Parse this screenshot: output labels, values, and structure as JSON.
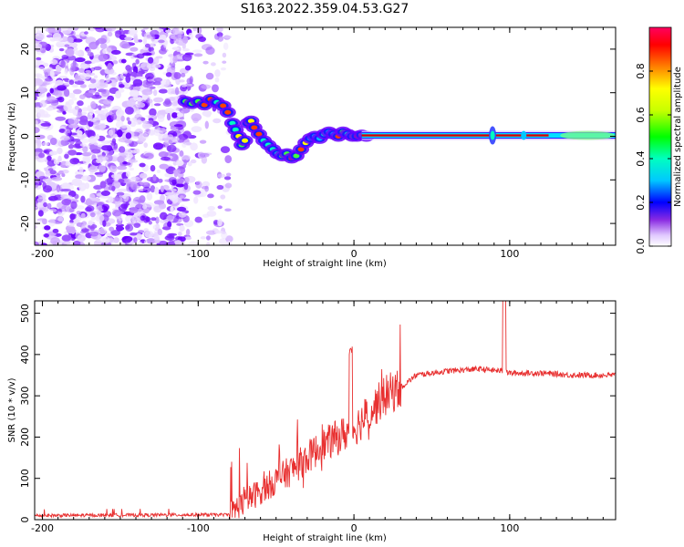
{
  "title": "S163.2022.359.04.53.G27",
  "colors": {
    "signal": "#dc0000",
    "snr_line": "#e83030",
    "noise": "#7a1cff"
  },
  "chart_data": [
    {
      "type": "heatmap",
      "name": "spectrogram",
      "xlabel": "Height of straight line (km)",
      "ylabel": "Frequency (Hz)",
      "xlim": [
        -205,
        168
      ],
      "ylim": [
        -25,
        25
      ],
      "x_ticks": [
        -200,
        -100,
        0,
        100
      ],
      "y_ticks": [
        -20,
        -10,
        0,
        10,
        20
      ],
      "colorbar": {
        "label": "Normalized spectral amplitude",
        "range": [
          0,
          1
        ],
        "ticks": [
          "0.0",
          "0.2",
          "0.4",
          "0.6",
          "0.8"
        ],
        "colormap": "hsv"
      },
      "ridge_points": [
        [
          -108,
          8
        ],
        [
          -104,
          7.5
        ],
        [
          -100,
          8
        ],
        [
          -96,
          7.2
        ],
        [
          -92,
          8.5
        ],
        [
          -88,
          7.8
        ],
        [
          -84,
          7
        ],
        [
          -81,
          5.5
        ],
        [
          -78,
          3
        ],
        [
          -76,
          1.5
        ],
        [
          -74,
          0
        ],
        [
          -72,
          -2
        ],
        [
          -70,
          -1
        ],
        [
          -68,
          3
        ],
        [
          -66,
          3.5
        ],
        [
          -64,
          2
        ],
        [
          -61,
          0.5
        ],
        [
          -58,
          -1
        ],
        [
          -55,
          -2
        ],
        [
          -52,
          -3
        ],
        [
          -49,
          -4
        ],
        [
          -46,
          -4.5
        ],
        [
          -43,
          -4
        ],
        [
          -40,
          -5
        ],
        [
          -37,
          -4.5
        ],
        [
          -34,
          -3
        ],
        [
          -31,
          -1.5
        ],
        [
          -28,
          -0.5
        ],
        [
          -25,
          0
        ],
        [
          -22,
          -0.5
        ],
        [
          -19,
          0.5
        ],
        [
          -16,
          1
        ],
        [
          -13,
          0.5
        ],
        [
          -10,
          0
        ],
        [
          -7,
          1
        ],
        [
          -4,
          0.5
        ],
        [
          -1,
          0
        ],
        [
          2,
          0
        ],
        [
          5,
          0.3
        ],
        [
          8,
          0
        ]
      ],
      "steady_band": {
        "x_start": 5,
        "x_end": 168,
        "frequency": 0.2
      }
    },
    {
      "type": "line",
      "name": "snr",
      "xlabel": "Height of straight line (km)",
      "ylabel": "SNR (10 * v/v)",
      "xlim": [
        -205,
        168
      ],
      "ylim": [
        0,
        530
      ],
      "x_ticks": [
        -200,
        -100,
        0,
        100
      ],
      "y_ticks": [
        0,
        100,
        200,
        300,
        400,
        500
      ],
      "envelope_x": [
        -205,
        -80,
        -75,
        -60,
        -40,
        -20,
        0,
        20,
        30,
        40,
        60,
        80,
        95,
        100,
        120,
        140,
        168
      ],
      "envelope_y": [
        10,
        12,
        30,
        70,
        120,
        180,
        220,
        300,
        320,
        350,
        360,
        365,
        360,
        355,
        355,
        350,
        350
      ]
    }
  ]
}
